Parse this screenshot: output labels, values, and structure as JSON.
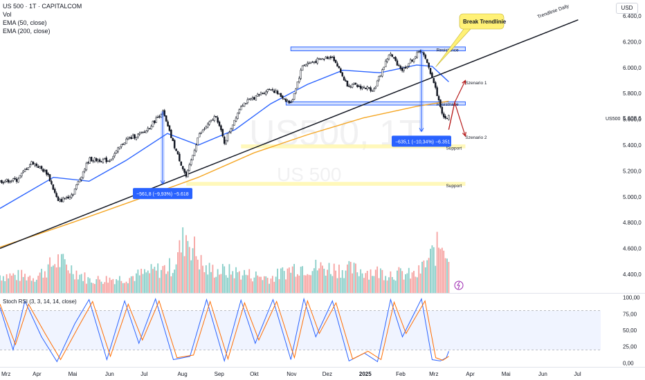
{
  "header": {
    "symbol_title": "US 500 · 1T · CAPITALCOM",
    "vol_label": "Vol",
    "ema50_label": "EMA (50, close)",
    "ema200_label": "EMA (200, close)",
    "currency": "USD"
  },
  "colors": {
    "up": "#26a69a",
    "down": "#ef5350",
    "candle": "#131722",
    "ema50": "#2962ff",
    "ema200": "#f5a623",
    "trendline": "#131722",
    "zone_blue": "#2962ff",
    "zone_yellow": "#fff59d",
    "stoch_k": "#2962ff",
    "stoch_d": "#ff6d00",
    "arrow": "#b71c1c",
    "callout_bg": "#fff176",
    "measure_bg": "#2962ff"
  },
  "chart_data": [
    {
      "type": "candlestick",
      "title": "US 500 · 1T · CAPITALCOM",
      "watermark_symbol": "US500, 1T",
      "watermark_name": "US 500",
      "symbol": "US500",
      "last_price": "5.608,6",
      "y_ticks": [
        "6.400,0",
        "6.200,0",
        "6.000,0",
        "5.800,0",
        "5.600,0",
        "5.400,0",
        "5.200,0",
        "5.000,0",
        "4.800,0",
        "4.600,0",
        "4.400,0"
      ],
      "y_tick_values": [
        6400,
        6200,
        6000,
        5800,
        5600,
        5400,
        5200,
        5000,
        4800,
        4600,
        4400
      ],
      "ylim": [
        4330,
        6470
      ],
      "x_ticks": [
        "Mrz",
        "Apr",
        "Mai",
        "Jun",
        "Jul",
        "Aug",
        "Sep",
        "Okt",
        "Nov",
        "Dez",
        "2025",
        "Feb",
        "Mrz",
        "Apr",
        "Mai",
        "Jun",
        "Jul"
      ],
      "x_tick_dates": [
        "2024-03-01",
        "2024-04-01",
        "2024-05-01",
        "2024-06-01",
        "2024-07-01",
        "2024-08-01",
        "2024-09-01",
        "2024-10-01",
        "2024-11-01",
        "2024-12-01",
        "2025-01-01",
        "2025-02-01",
        "2025-03-01",
        "2025-04-01",
        "2025-05-01",
        "2025-06-01",
        "2025-07-01"
      ],
      "xlim": [
        "2024-03-01",
        "2025-07-20"
      ],
      "price_path": [
        {
          "date": "2024-03-01",
          "close": 5120
        },
        {
          "date": "2024-03-15",
          "close": 5130
        },
        {
          "date": "2024-03-28",
          "close": 5270
        },
        {
          "date": "2024-04-10",
          "close": 5180
        },
        {
          "date": "2024-04-19",
          "close": 4960
        },
        {
          "date": "2024-05-01",
          "close": 5020
        },
        {
          "date": "2024-05-15",
          "close": 5290
        },
        {
          "date": "2024-06-01",
          "close": 5280
        },
        {
          "date": "2024-06-15",
          "close": 5440
        },
        {
          "date": "2024-07-01",
          "close": 5500
        },
        {
          "date": "2024-07-16",
          "close": 5660
        },
        {
          "date": "2024-07-25",
          "close": 5410
        },
        {
          "date": "2024-08-05",
          "close": 5150
        },
        {
          "date": "2024-08-15",
          "close": 5470
        },
        {
          "date": "2024-08-30",
          "close": 5630
        },
        {
          "date": "2024-09-06",
          "close": 5420
        },
        {
          "date": "2024-09-20",
          "close": 5710
        },
        {
          "date": "2024-10-15",
          "close": 5840
        },
        {
          "date": "2024-11-01",
          "close": 5720
        },
        {
          "date": "2024-11-11",
          "close": 6020
        },
        {
          "date": "2024-12-06",
          "close": 6090
        },
        {
          "date": "2024-12-18",
          "close": 5870
        },
        {
          "date": "2025-01-10",
          "close": 5830
        },
        {
          "date": "2025-01-23",
          "close": 6110
        },
        {
          "date": "2025-02-03",
          "close": 5980
        },
        {
          "date": "2025-02-19",
          "close": 6140
        },
        {
          "date": "2025-02-28",
          "close": 5930
        },
        {
          "date": "2025-03-10",
          "close": 5600
        },
        {
          "date": "2025-03-14",
          "close": 5620
        }
      ],
      "ema50": [
        {
          "date": "2024-03-01",
          "value": 4910
        },
        {
          "date": "2024-04-15",
          "value": 5150
        },
        {
          "date": "2024-05-15",
          "value": 5120
        },
        {
          "date": "2024-06-15",
          "value": 5280
        },
        {
          "date": "2024-07-20",
          "value": 5490
        },
        {
          "date": "2024-08-15",
          "value": 5400
        },
        {
          "date": "2024-09-15",
          "value": 5520
        },
        {
          "date": "2024-10-15",
          "value": 5720
        },
        {
          "date": "2024-11-15",
          "value": 5870
        },
        {
          "date": "2024-12-15",
          "value": 5980
        },
        {
          "date": "2025-01-15",
          "value": 5960
        },
        {
          "date": "2025-02-15",
          "value": 6020
        },
        {
          "date": "2025-02-28",
          "value": 6010
        },
        {
          "date": "2025-03-14",
          "value": 5890
        }
      ],
      "ema200": [
        {
          "date": "2024-03-01",
          "value": 4610
        },
        {
          "date": "2024-05-01",
          "value": 4800
        },
        {
          "date": "2024-07-01",
          "value": 5000
        },
        {
          "date": "2024-08-15",
          "value": 5150
        },
        {
          "date": "2024-10-01",
          "value": 5340
        },
        {
          "date": "2024-11-15",
          "value": 5480
        },
        {
          "date": "2025-01-01",
          "value": 5610
        },
        {
          "date": "2025-02-15",
          "value": 5700
        },
        {
          "date": "2025-03-14",
          "value": 5740
        }
      ],
      "trendline": {
        "label": "Trendlinie Daily",
        "start": {
          "date": "2024-03-01",
          "value": 4600
        },
        "end": {
          "date": "2025-07-01",
          "value": 6370
        }
      },
      "resistance_zones": [
        {
          "label": "Resistance",
          "from_date": "2024-11-01",
          "to_date": "2025-03-28",
          "low": 6130,
          "high": 6160
        },
        {
          "label": "Resistnace",
          "from_date": "2024-10-28",
          "to_date": "2025-03-28",
          "low": 5710,
          "high": 5735
        }
      ],
      "support_zones": [
        {
          "label": "Support",
          "from_date": "2024-09-20",
          "to_date": "2025-03-28",
          "low": 5375,
          "high": 5405
        },
        {
          "label": "Support",
          "from_date": "2024-08-05",
          "to_date": "2025-03-28",
          "low": 5085,
          "high": 5115
        }
      ],
      "measurements": [
        {
          "label": "−561,8 (−9,93%) −5.618",
          "date": "2024-07-16",
          "from": 5660,
          "to": 5100
        },
        {
          "label": "−635,1 (−10,34%) −6.351",
          "date": "2025-02-19",
          "from": 6140,
          "to": 5505
        }
      ],
      "annotations": [
        {
          "label": "Break Trendlinie",
          "date": "2025-03-03",
          "value": 5930
        },
        {
          "label": "Szenario 1",
          "date": "2025-03-21",
          "value": 5870
        },
        {
          "label": "Szenario 2",
          "date": "2025-03-21",
          "value": 5480
        }
      ],
      "scenarios": [
        {
          "name": "Szenario 1",
          "path": [
            {
              "date": "2025-03-14",
              "value": 5520
            },
            {
              "date": "2025-03-19",
              "value": 5730
            },
            {
              "date": "2025-03-28",
              "value": 5900
            }
          ]
        },
        {
          "name": "Szenario 2",
          "path": [
            {
              "date": "2025-03-14",
              "value": 5520
            },
            {
              "date": "2025-03-19",
              "value": 5730
            },
            {
              "date": "2025-03-28",
              "value": 5470
            }
          ]
        }
      ]
    },
    {
      "type": "bar",
      "title": "Vol",
      "volume_profile": [
        {
          "date": "2024-03-01",
          "value": 30
        },
        {
          "date": "2024-04-01",
          "value": 28
        },
        {
          "date": "2024-04-19",
          "value": 55
        },
        {
          "date": "2024-05-15",
          "value": 22
        },
        {
          "date": "2024-06-15",
          "value": 25
        },
        {
          "date": "2024-07-25",
          "value": 45
        },
        {
          "date": "2024-08-05",
          "value": 100
        },
        {
          "date": "2024-08-20",
          "value": 40
        },
        {
          "date": "2024-09-15",
          "value": 35
        },
        {
          "date": "2024-10-15",
          "value": 25
        },
        {
          "date": "2024-11-06",
          "value": 45
        },
        {
          "date": "2024-12-18",
          "value": 40
        },
        {
          "date": "2025-01-15",
          "value": 35
        },
        {
          "date": "2025-02-15",
          "value": 30
        },
        {
          "date": "2025-03-10",
          "value": 90
        },
        {
          "date": "2025-03-14",
          "value": 60
        }
      ]
    },
    {
      "type": "line",
      "title": "Stoch RSI (3, 3, 14, 14, close)",
      "y_ticks": [
        "100,00",
        "75,00",
        "50,00",
        "25,00",
        "0,00"
      ],
      "y_tick_values": [
        100,
        75,
        50,
        25,
        0
      ],
      "ylim": [
        -5,
        105
      ],
      "band": [
        20,
        80
      ],
      "series": [
        {
          "role": "%K",
          "color": "#2962ff",
          "points": [
            {
              "date": "2024-03-01",
              "value": 85
            },
            {
              "date": "2024-03-12",
              "value": 20
            },
            {
              "date": "2024-03-22",
              "value": 95
            },
            {
              "date": "2024-04-05",
              "value": 40
            },
            {
              "date": "2024-04-18",
              "value": 2
            },
            {
              "date": "2024-05-03",
              "value": 60
            },
            {
              "date": "2024-05-15",
              "value": 97
            },
            {
              "date": "2024-05-30",
              "value": 5
            },
            {
              "date": "2024-06-14",
              "value": 95
            },
            {
              "date": "2024-06-26",
              "value": 30
            },
            {
              "date": "2024-07-10",
              "value": 98
            },
            {
              "date": "2024-07-25",
              "value": 5
            },
            {
              "date": "2024-08-08",
              "value": 10
            },
            {
              "date": "2024-08-22",
              "value": 97
            },
            {
              "date": "2024-09-06",
              "value": 3
            },
            {
              "date": "2024-09-20",
              "value": 96
            },
            {
              "date": "2024-10-02",
              "value": 30
            },
            {
              "date": "2024-10-17",
              "value": 97
            },
            {
              "date": "2024-11-01",
              "value": 5
            },
            {
              "date": "2024-11-12",
              "value": 98
            },
            {
              "date": "2024-11-22",
              "value": 40
            },
            {
              "date": "2024-12-06",
              "value": 95
            },
            {
              "date": "2024-12-20",
              "value": 3
            },
            {
              "date": "2025-01-02",
              "value": 15
            },
            {
              "date": "2025-01-13",
              "value": 2
            },
            {
              "date": "2025-01-24",
              "value": 97
            },
            {
              "date": "2025-02-03",
              "value": 40
            },
            {
              "date": "2025-02-19",
              "value": 98
            },
            {
              "date": "2025-02-28",
              "value": 5
            },
            {
              "date": "2025-03-07",
              "value": 3
            },
            {
              "date": "2025-03-12",
              "value": 8
            },
            {
              "date": "2025-03-14",
              "value": 18
            }
          ]
        },
        {
          "role": "%D",
          "color": "#ff6d00",
          "points": [
            {
              "date": "2024-03-01",
              "value": 90
            },
            {
              "date": "2024-03-14",
              "value": 28
            },
            {
              "date": "2024-03-25",
              "value": 90
            },
            {
              "date": "2024-04-08",
              "value": 45
            },
            {
              "date": "2024-04-21",
              "value": 5
            },
            {
              "date": "2024-05-06",
              "value": 55
            },
            {
              "date": "2024-05-18",
              "value": 94
            },
            {
              "date": "2024-06-02",
              "value": 10
            },
            {
              "date": "2024-06-17",
              "value": 90
            },
            {
              "date": "2024-06-29",
              "value": 35
            },
            {
              "date": "2024-07-13",
              "value": 95
            },
            {
              "date": "2024-07-28",
              "value": 8
            },
            {
              "date": "2024-08-11",
              "value": 12
            },
            {
              "date": "2024-08-25",
              "value": 94
            },
            {
              "date": "2024-09-09",
              "value": 6
            },
            {
              "date": "2024-09-23",
              "value": 92
            },
            {
              "date": "2024-10-05",
              "value": 35
            },
            {
              "date": "2024-10-20",
              "value": 94
            },
            {
              "date": "2024-11-04",
              "value": 8
            },
            {
              "date": "2024-11-15",
              "value": 95
            },
            {
              "date": "2024-11-25",
              "value": 45
            },
            {
              "date": "2024-12-09",
              "value": 92
            },
            {
              "date": "2024-12-23",
              "value": 6
            },
            {
              "date": "2025-01-05",
              "value": 18
            },
            {
              "date": "2025-01-16",
              "value": 5
            },
            {
              "date": "2025-01-27",
              "value": 93
            },
            {
              "date": "2025-02-06",
              "value": 45
            },
            {
              "date": "2025-02-22",
              "value": 95
            },
            {
              "date": "2025-03-03",
              "value": 8
            },
            {
              "date": "2025-03-09",
              "value": 4
            },
            {
              "date": "2025-03-14",
              "value": 10
            }
          ]
        }
      ]
    }
  ]
}
